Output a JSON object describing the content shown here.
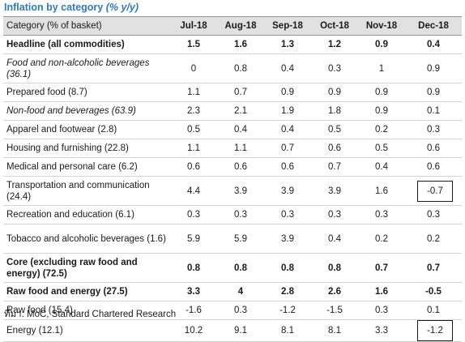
{
  "title": {
    "main": "Inflation by category",
    "unit": "(% y/y)"
  },
  "table": {
    "header": {
      "category": "Category (% of basket)",
      "months": [
        "Jul-18",
        "Aug-18",
        "Sep-18",
        "Oct-18",
        "Nov-18",
        "Dec-18"
      ]
    },
    "rows": [
      {
        "label": "Headline (all commodities)",
        "values": [
          "1.5",
          "1.6",
          "1.3",
          "1.2",
          "0.9",
          "0.4"
        ],
        "bold": true,
        "italic": false,
        "tall": false,
        "boxed_dec": false
      },
      {
        "label": "Food and non-alcoholic beverages (36.1)",
        "values": [
          "0",
          "0.8",
          "0.4",
          "0.3",
          "1",
          "0.9"
        ],
        "bold": false,
        "italic": true,
        "tall": true,
        "boxed_dec": false
      },
      {
        "label": "Prepared food (8.7)",
        "values": [
          "1.1",
          "0.7",
          "0.9",
          "0.9",
          "0.9",
          "0.9"
        ],
        "bold": false,
        "italic": false,
        "tall": false,
        "boxed_dec": false
      },
      {
        "label": "Non-food and beverages (63.9)",
        "values": [
          "2.3",
          "2.1",
          "1.9",
          "1.8",
          "0.9",
          "0.1"
        ],
        "bold": false,
        "italic": true,
        "tall": false,
        "boxed_dec": false
      },
      {
        "label": "Apparel and footwear (2.8)",
        "values": [
          "0.5",
          "0.4",
          "0.4",
          "0.5",
          "0.2",
          "0.3"
        ],
        "bold": false,
        "italic": false,
        "tall": false,
        "boxed_dec": false
      },
      {
        "label": "Housing and furnishing (22.8)",
        "values": [
          "1.1",
          "1.1",
          "0.7",
          "0.6",
          "0.5",
          "0.6"
        ],
        "bold": false,
        "italic": false,
        "tall": false,
        "boxed_dec": false
      },
      {
        "label": "Medical and personal care (6.2)",
        "values": [
          "0.6",
          "0.6",
          "0.6",
          "0.7",
          "0.4",
          "0.6"
        ],
        "bold": false,
        "italic": false,
        "tall": false,
        "boxed_dec": false
      },
      {
        "label": "Transportation and communication (24.4)",
        "values": [
          "4.4",
          "3.9",
          "3.9",
          "3.9",
          "1.6",
          "-0.7"
        ],
        "bold": false,
        "italic": false,
        "tall": true,
        "boxed_dec": true
      },
      {
        "label": "Recreation and education (6.1)",
        "values": [
          "0.3",
          "0.3",
          "0.3",
          "0.3",
          "0.3",
          "0.3"
        ],
        "bold": false,
        "italic": false,
        "tall": false,
        "boxed_dec": false
      },
      {
        "label": "Tobacco and alcoholic beverages (1.6)",
        "values": [
          "5.9",
          "5.9",
          "3.9",
          "0.4",
          "0.2",
          "0.2"
        ],
        "bold": false,
        "italic": false,
        "tall": true,
        "boxed_dec": false
      },
      {
        "label": "Core (excluding raw food and energy) (72.5)",
        "values": [
          "0.8",
          "0.8",
          "0.8",
          "0.8",
          "0.7",
          "0.7"
        ],
        "bold": true,
        "italic": false,
        "tall": true,
        "boxed_dec": false
      },
      {
        "label": "Raw food and energy (27.5)",
        "values": [
          "3.3",
          "4",
          "2.8",
          "2.6",
          "1.6",
          "-0.5"
        ],
        "bold": true,
        "italic": false,
        "tall": false,
        "boxed_dec": false
      },
      {
        "label": "Raw food (15.4)",
        "values": [
          "-1.6",
          "0.3",
          "-1.2",
          "-1.5",
          "0.3",
          "0.1"
        ],
        "bold": false,
        "italic": false,
        "tall": false,
        "boxed_dec": false
      },
      {
        "label": "Energy (12.1)",
        "values": [
          "10.2",
          "9.1",
          "8.1",
          "8.1",
          "3.3",
          "-1.2"
        ],
        "bold": false,
        "italic": false,
        "tall": false,
        "boxed_dec": true
      }
    ]
  },
  "source": "ที่มา: MoC, Standard Chartered Research"
}
